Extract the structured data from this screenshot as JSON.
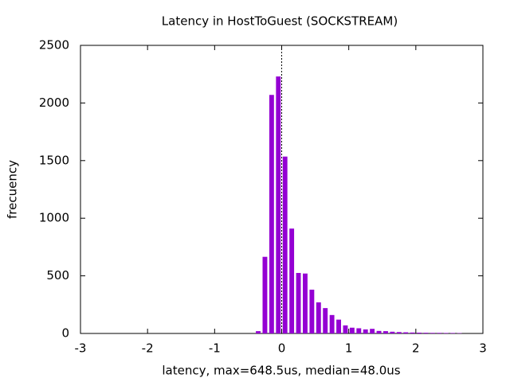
{
  "chart_data": {
    "type": "bar",
    "title": "Latency in HostToGuest (SOCKSTREAM)",
    "x_label": "latency, max=648.5us, median=48.0us",
    "y_label": "frecuency",
    "x": [
      -0.35,
      -0.25,
      -0.15,
      -0.05,
      0.05,
      0.15,
      0.25,
      0.35,
      0.45,
      0.55,
      0.65,
      0.75,
      0.85,
      0.95,
      1.05,
      1.15,
      1.25,
      1.35,
      1.45,
      1.55,
      1.65,
      1.75,
      1.85,
      1.95,
      2.05,
      2.15,
      2.25,
      2.35,
      2.45,
      2.55,
      2.65
    ],
    "values": [
      20,
      665,
      2070,
      2230,
      1535,
      910,
      525,
      520,
      380,
      270,
      220,
      160,
      120,
      70,
      50,
      45,
      35,
      40,
      22,
      20,
      15,
      12,
      10,
      8,
      7,
      6,
      5,
      5,
      4,
      4,
      3
    ],
    "color": "#9400d3",
    "xlim": [
      -3,
      3
    ],
    "xticks": [
      -3,
      -2,
      -1,
      0,
      1,
      2,
      3
    ],
    "ylim": [
      0,
      2500
    ],
    "yticks": [
      0,
      500,
      1000,
      1500,
      2000,
      2500
    ],
    "zero_axis": true
  }
}
